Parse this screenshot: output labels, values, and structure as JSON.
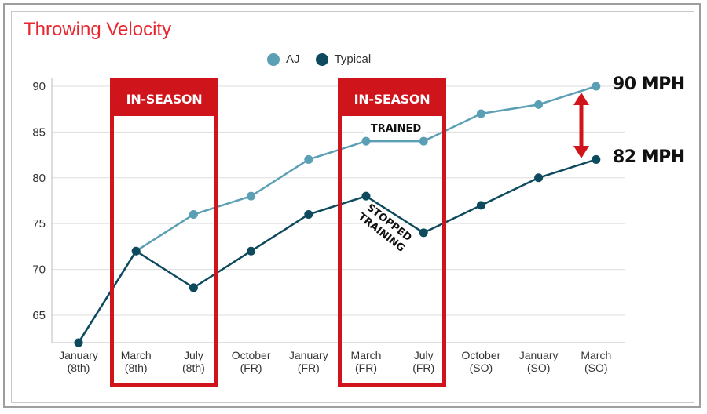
{
  "chart_data": {
    "type": "line",
    "title": "Throwing Velocity",
    "categories": [
      [
        "January",
        "(8th)"
      ],
      [
        "March",
        "(8th)"
      ],
      [
        "July",
        "(8th)"
      ],
      [
        "October",
        "(FR)"
      ],
      [
        "January",
        "(FR)"
      ],
      [
        "March",
        "(FR)"
      ],
      [
        "July",
        "(FR)"
      ],
      [
        "October",
        "(SO)"
      ],
      [
        "January",
        "(SO)"
      ],
      [
        "March",
        "(SO)"
      ]
    ],
    "series": [
      {
        "name": "AJ",
        "color": "#5b9fb5",
        "values": [
          62,
          72,
          76,
          78,
          82,
          84,
          84,
          87,
          88,
          90
        ]
      },
      {
        "name": "Typical",
        "color": "#0d4a5e",
        "values": [
          62,
          72,
          68,
          72,
          76,
          78,
          74,
          77,
          80,
          82
        ]
      }
    ],
    "ylim": [
      62,
      90
    ],
    "yticks": [
      65,
      70,
      75,
      80,
      85,
      90
    ],
    "grid": true,
    "legend_position": "top-center",
    "annotations": {
      "season_label": "IN-SEASON",
      "trained": "TRAINED",
      "stopped_line1": "STOPPED",
      "stopped_line2": "TRAINING",
      "aj_final": "90 MPH",
      "typical_final": "82 MPH"
    }
  }
}
